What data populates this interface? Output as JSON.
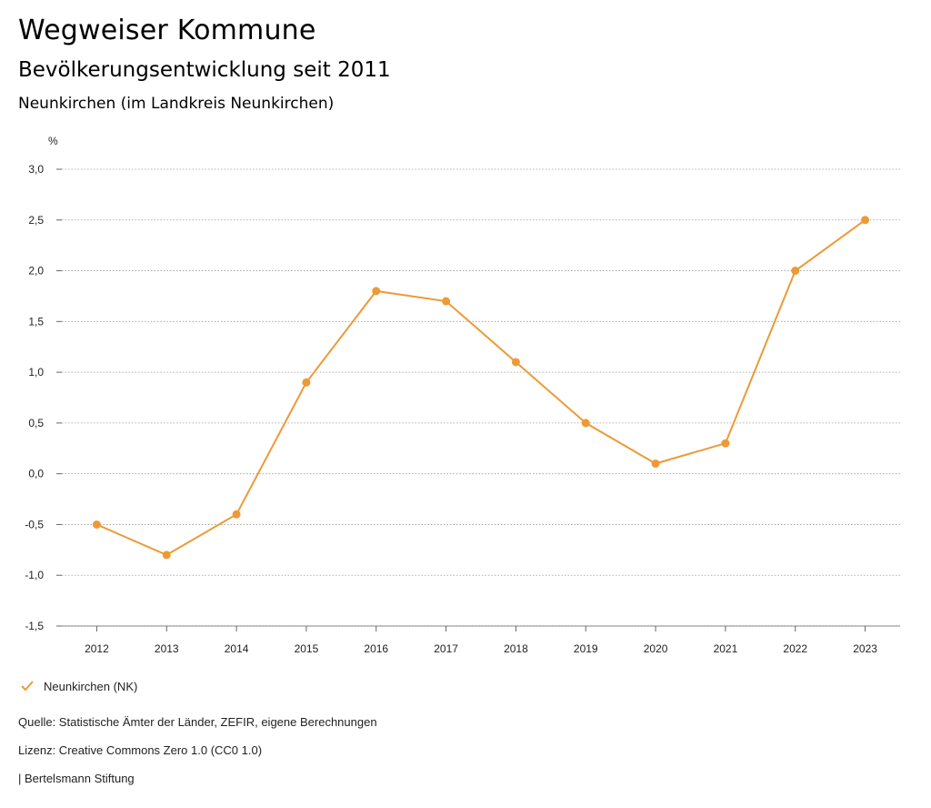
{
  "header": {
    "title": "Wegweiser Kommune",
    "subtitle": "Bevölkerungsentwicklung seit 2011",
    "region": "Neunkirchen (im Landkreis Neunkirchen)"
  },
  "chart_data": {
    "type": "line",
    "ylabel": "%",
    "ylim": [
      -1.5,
      3.0
    ],
    "y_ticks": [
      "3,0",
      "2,5",
      "2,0",
      "1,5",
      "1,0",
      "0,5",
      "0,0",
      "-0,5",
      "-1,0",
      "-1,5"
    ],
    "y_tick_values": [
      3.0,
      2.5,
      2.0,
      1.5,
      1.0,
      0.5,
      0.0,
      -0.5,
      -1.0,
      -1.5
    ],
    "categories": [
      "2012",
      "2013",
      "2014",
      "2015",
      "2016",
      "2017",
      "2018",
      "2019",
      "2020",
      "2021",
      "2022",
      "2023"
    ],
    "series": [
      {
        "name": "Neunkirchen (NK)",
        "color": "#ec9a36",
        "values": [
          -0.5,
          -0.8,
          -0.4,
          0.9,
          1.8,
          1.7,
          1.1,
          0.5,
          0.1,
          0.3,
          2.0,
          2.5
        ]
      }
    ],
    "grid": true,
    "legend_position": "bottom-left"
  },
  "footer": {
    "source": "Quelle: Statistische Ämter der Länder, ZEFIR, eigene Berechnungen",
    "license": "Lizenz: Creative Commons Zero 1.0 (CC0 1.0)",
    "brand": "| Bertelsmann Stiftung"
  }
}
